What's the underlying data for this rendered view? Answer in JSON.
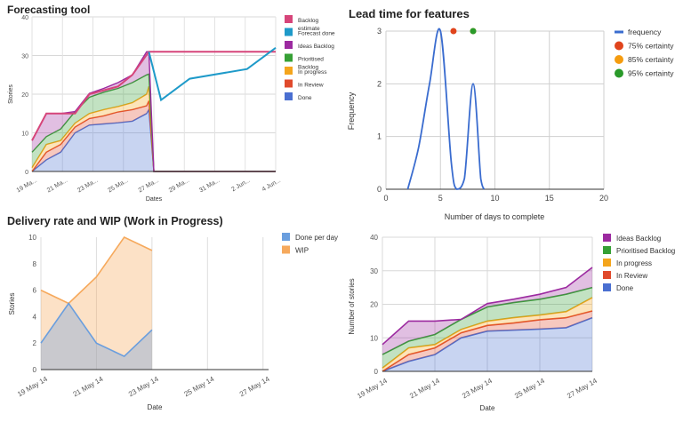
{
  "chart_data": [
    {
      "id": "forecast",
      "type": "area",
      "title": "Forecasting tool",
      "xlabel": "Dates",
      "ylabel": "Stories",
      "ylim": [
        0,
        40
      ],
      "yticks": [
        0,
        10,
        20,
        30,
        40
      ],
      "xticks": [
        "19 Ma...",
        "21 Ma...",
        "23 Ma...",
        "25 Ma...",
        "27 Ma...",
        "29 Ma...",
        "31 Ma...",
        "2 Jun...",
        "4 Jun..."
      ],
      "legend_position": "right",
      "x": [
        0,
        1,
        2,
        3,
        4,
        5,
        6,
        7,
        8,
        8.15,
        8.5,
        10,
        12,
        14,
        16,
        17
      ],
      "stacked_series": [
        {
          "name": "Done",
          "color": "#4a6fd1",
          "values": [
            0,
            3,
            5,
            10,
            12,
            12.3,
            12.6,
            13,
            15,
            16,
            0,
            0,
            0,
            0,
            0,
            0
          ]
        },
        {
          "name": "In Review",
          "color": "#e04a2c",
          "values": [
            0,
            2,
            2,
            1.5,
            1.7,
            2.1,
            2.8,
            3,
            2,
            2.3,
            0,
            0,
            0,
            0,
            0,
            0
          ]
        },
        {
          "name": "In progress",
          "color": "#f4a51c",
          "values": [
            1,
            2,
            1,
            1,
            1.3,
            1.6,
            1.4,
            1.8,
            3,
            3.7,
            0,
            0,
            0,
            0,
            0,
            0
          ]
        },
        {
          "name": "Prioritised Backlog",
          "color": "#36a035",
          "values": [
            4,
            2,
            3,
            3,
            4.2,
            4.5,
            4.7,
            5.2,
            5,
            3.2,
            0,
            0,
            0,
            0,
            0,
            0
          ]
        },
        {
          "name": "Ideas Backlog",
          "color": "#9c2aa0",
          "values": [
            3,
            6,
            4,
            0,
            1,
            1,
            1.5,
            2,
            6,
            5.8,
            0,
            0,
            0,
            0,
            0,
            0
          ]
        }
      ],
      "line_series": [
        {
          "name": "Backlog estimate",
          "color": "#d6457a",
          "points": [
            [
              0,
              8
            ],
            [
              1,
              15
            ],
            [
              2,
              15
            ],
            [
              3,
              15
            ],
            [
              4,
              20
            ],
            [
              6,
              22
            ],
            [
              7,
              25
            ],
            [
              8.15,
              31
            ],
            [
              17,
              31
            ]
          ]
        },
        {
          "name": "Forecast done",
          "color": "#1e9ac9",
          "points": [
            [
              8.15,
              31
            ],
            [
              9,
              18.5
            ],
            [
              11,
              24
            ],
            [
              15,
              26.5
            ],
            [
              17,
              32
            ]
          ]
        }
      ],
      "legend": [
        "Backlog estimate",
        "Forecast done",
        "Ideas Backlog",
        "Prioritised Backlog",
        "In progress",
        "In Review",
        "Done"
      ],
      "legend_colors": [
        "#d6457a",
        "#1e9ac9",
        "#9c2aa0",
        "#36a035",
        "#f4a51c",
        "#e04a2c",
        "#4a6fd1"
      ]
    },
    {
      "id": "leadtime",
      "type": "line",
      "title": "Lead time for features",
      "xlabel": "Number of days to complete",
      "ylabel": "Frequency",
      "xlim": [
        0,
        20
      ],
      "ylim": [
        0,
        3
      ],
      "xticks": [
        0,
        5,
        10,
        15,
        20
      ],
      "yticks": [
        0,
        1,
        2,
        3
      ],
      "legend_position": "right",
      "series": [
        {
          "name": "frequency",
          "color": "#3a6ccf",
          "points": [
            [
              2,
              0
            ],
            [
              3,
              0.8
            ],
            [
              4,
              2.0
            ],
            [
              5,
              3.0
            ],
            [
              6,
              0.5
            ],
            [
              6.5,
              0
            ],
            [
              7.2,
              0.2
            ],
            [
              8,
              2.0
            ],
            [
              8.7,
              0.2
            ],
            [
              9,
              0
            ]
          ]
        }
      ],
      "markers": [
        {
          "name": "75% certainty",
          "x": 6.2,
          "y": 3,
          "color": "#e0441c"
        },
        {
          "name": "85% certainty",
          "x": 8.0,
          "y": 3,
          "color": "#f59c0f"
        },
        {
          "name": "95% certainty",
          "x": 8.0,
          "y": 3,
          "color": "#2a9a2a"
        }
      ],
      "legend": [
        "frequency",
        "75% certainty",
        "85% certainty",
        "95% certainty"
      ],
      "legend_colors": [
        "#3a6ccf",
        "#e0441c",
        "#f59c0f",
        "#2a9a2a"
      ]
    },
    {
      "id": "delivery",
      "type": "area",
      "title": "Delivery rate and WIP (Work in Progress)",
      "xlabel": "Date",
      "ylabel": "Stories",
      "ylim": [
        0,
        10
      ],
      "yticks": [
        0,
        2,
        4,
        6,
        8,
        10
      ],
      "xticks": [
        "19 May 14",
        "21 May 14",
        "23 May 14",
        "25 May 14",
        "27 May 14"
      ],
      "legend_position": "right",
      "x": [
        0,
        1,
        2,
        3,
        4
      ],
      "x_max": 8.2,
      "series": [
        {
          "name": "WIP",
          "color": "#f6a95c",
          "values": [
            6,
            5,
            7,
            10,
            9
          ]
        },
        {
          "name": "Done per day",
          "color": "#6a9ede",
          "values": [
            2,
            5,
            2,
            1,
            3
          ]
        }
      ],
      "legend": [
        "Done per day",
        "WIP"
      ],
      "legend_colors": [
        "#6a9ede",
        "#f6a95c"
      ]
    },
    {
      "id": "stories",
      "type": "area",
      "title": "",
      "xlabel": "Date",
      "ylabel": "Number of stories",
      "ylim": [
        0,
        40
      ],
      "yticks": [
        0,
        10,
        20,
        30,
        40
      ],
      "xticks": [
        "19 May 14",
        "21 May 14",
        "23 May 14",
        "25 May 14",
        "27 May 14"
      ],
      "legend_position": "right",
      "x": [
        0,
        1,
        2,
        3,
        4,
        5,
        6,
        7,
        8
      ],
      "stacked_series": [
        {
          "name": "Done",
          "color": "#4a6fd1",
          "values": [
            0,
            3,
            5,
            10,
            12,
            12.3,
            12.6,
            13,
            16
          ]
        },
        {
          "name": "In Review",
          "color": "#e04a2c",
          "values": [
            0,
            2,
            2,
            1.5,
            1.7,
            2.1,
            2.8,
            3,
            2
          ]
        },
        {
          "name": "In progress",
          "color": "#f4a51c",
          "values": [
            1,
            2,
            1,
            1,
            1.3,
            1.6,
            1.4,
            1.8,
            4
          ]
        },
        {
          "name": "Prioritised Backlog",
          "color": "#36a035",
          "values": [
            4,
            2,
            3,
            3,
            4.2,
            4.5,
            4.7,
            5.2,
            3
          ]
        },
        {
          "name": "Ideas Backlog",
          "color": "#9c2aa0",
          "values": [
            3,
            6,
            4,
            0,
            1,
            1,
            1.5,
            2,
            6
          ]
        }
      ],
      "legend": [
        "Ideas Backlog",
        "Prioritised Backlog",
        "In progress",
        "In Review",
        "Done"
      ],
      "legend_colors": [
        "#9c2aa0",
        "#36a035",
        "#f4a51c",
        "#e04a2c",
        "#4a6fd1"
      ]
    }
  ]
}
